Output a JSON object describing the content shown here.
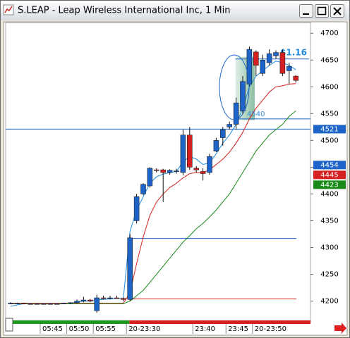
{
  "window": {
    "title": "S.LEAP - Leap Wireless International Inc, 1 Min"
  },
  "chart_data": {
    "type": "candlestick",
    "categories": [
      null,
      null,
      null,
      null,
      null,
      "05:45",
      null,
      null,
      null,
      "05:50",
      null,
      null,
      null,
      "05:55",
      null,
      null,
      null,
      null,
      "20-23:30",
      null,
      null,
      null,
      null,
      null,
      null,
      null,
      null,
      null,
      "23:40",
      null,
      null,
      null,
      null,
      "23:45",
      null,
      null,
      null,
      "20-23:50",
      null,
      null,
      null,
      null,
      null,
      null
    ],
    "open": [
      4196,
      4196,
      4196,
      4195,
      4195,
      4195,
      4195,
      4195,
      4195,
      4196,
      4197,
      4200,
      4202,
      4182,
      4206,
      4205,
      4206,
      4205,
      4203,
      4350,
      4400,
      4415,
      4445,
      4445,
      4440,
      4442,
      4440,
      4510,
      4448,
      4442,
      4440,
      4480,
      4505,
      4525,
      4530,
      4555,
      4605,
      4665,
      4625,
      4645,
      4658,
      4664,
      4630,
      4620
    ],
    "high": [
      4198,
      4197,
      4197,
      4196,
      4196,
      4196,
      4196,
      4196,
      4197,
      4198,
      4203,
      4208,
      4204,
      4212,
      4210,
      4210,
      4210,
      4207,
      4325,
      4400,
      4420,
      4450,
      4448,
      4447,
      4446,
      4447,
      4520,
      4525,
      4452,
      4448,
      4475,
      4505,
      4525,
      4535,
      4580,
      4620,
      4675,
      4668,
      4660,
      4670,
      4668,
      4670,
      4645,
      4622
    ],
    "low": [
      4194,
      4195,
      4194,
      4194,
      4194,
      4194,
      4194,
      4194,
      4194,
      4194,
      4195,
      4198,
      4198,
      4178,
      4203,
      4203,
      4204,
      4200,
      4200,
      4345,
      4398,
      4412,
      4440,
      4385,
      4436,
      4438,
      4435,
      4445,
      4440,
      4425,
      4436,
      4478,
      4490,
      4520,
      4520,
      4550,
      4600,
      4620,
      4620,
      4640,
      4652,
      4620,
      4605,
      4608
    ],
    "close": [
      4196,
      4196,
      4195,
      4195,
      4195,
      4195,
      4195,
      4195,
      4196,
      4197,
      4200,
      4202,
      4200,
      4206,
      4205,
      4206,
      4205,
      4203,
      4318,
      4395,
      4418,
      4448,
      4444,
      4440,
      4444,
      4443,
      4510,
      4450,
      4445,
      4438,
      4470,
      4500,
      4520,
      4530,
      4570,
      4610,
      4670,
      4640,
      4650,
      4662,
      4664,
      4625,
      4638,
      4612
    ],
    "up_color": "#1e64c8",
    "down_color": "#d42020",
    "moving_averages": [
      {
        "color": "#1e8ce0",
        "values": [
          4190,
          4193,
          4195,
          4195,
          4195,
          4195,
          4195,
          4195,
          4195,
          4196,
          4198,
          4200,
          4200,
          4202,
          4203,
          4204,
          4205,
          4205,
          4330,
          4370,
          4395,
          4420,
          4432,
          4437,
          4440,
          4442,
          4460,
          4470,
          4465,
          4455,
          4458,
          4475,
          4495,
          4510,
          4530,
          4560,
          4600,
          4620,
          4630,
          4640,
          4648,
          4645,
          4640,
          4632
        ]
      },
      {
        "color": "#d42020",
        "values": [
          4196,
          4196,
          4196,
          4196,
          4196,
          4196,
          4196,
          4196,
          4196,
          4196,
          4196,
          4196,
          4196,
          4196,
          4196,
          4196,
          4196,
          4196,
          4215,
          4270,
          4320,
          4360,
          4385,
          4400,
          4412,
          4420,
          4430,
          4438,
          4440,
          4440,
          4445,
          4455,
          4465,
          4478,
          4495,
          4515,
          4540,
          4560,
          4575,
          4590,
          4600,
          4602,
          4605,
          4606
        ]
      },
      {
        "color": "#1a8a1a",
        "values": [
          4195,
          4195,
          4195,
          4195,
          4195,
          4195,
          4195,
          4195,
          4195,
          4195,
          4195,
          4195,
          4195,
          4195,
          4195,
          4195,
          4195,
          4195,
          4200,
          4210,
          4220,
          4235,
          4250,
          4265,
          4280,
          4295,
          4310,
          4322,
          4335,
          4345,
          4357,
          4370,
          4385,
          4400,
          4420,
          4440,
          4460,
          4480,
          4495,
          4510,
          4520,
          4530,
          4545,
          4555
        ]
      }
    ],
    "ylim": [
      4160,
      4720
    ],
    "yticks": [
      4200,
      4250,
      4300,
      4350,
      4400,
      4450,
      4500,
      4550,
      4600,
      4650,
      4700
    ],
    "levels": [
      {
        "value": 4521,
        "color": "#1e64c8",
        "full": true
      },
      {
        "value": 4540,
        "color": "#1e64c8",
        "full": false
      },
      {
        "value": 4652,
        "color": "#1e64c8",
        "full": false
      },
      {
        "value": 4317,
        "color": "#1e64c8",
        "full": false
      },
      {
        "value": 4204,
        "color": "#d42020",
        "full": false
      }
    ],
    "zone": {
      "low": 4538,
      "high": 4656,
      "color": "#2e8b57"
    },
    "annotations": [
      {
        "text": "$1.16",
        "color": "#1e8ce0"
      },
      {
        "text": "455",
        "color": "#6fa8dc"
      },
      {
        "text": "4540",
        "color": "#3c8cdc"
      }
    ],
    "price_badges": [
      {
        "value": 4521,
        "color": "#1e64c8"
      },
      {
        "value": 4454,
        "color": "#1e64c8"
      },
      {
        "value": 4445,
        "color": "#d42020"
      },
      {
        "value": 4423,
        "color": "#1a8a1a"
      }
    ]
  }
}
